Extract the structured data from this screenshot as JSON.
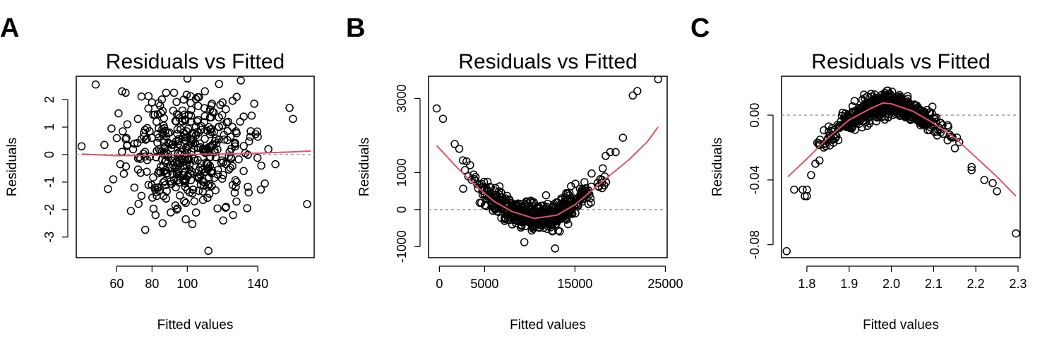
{
  "chart_data": [
    {
      "type": "scatter",
      "panel_label": "A",
      "title": "Residuals vs Fitted",
      "xlabel": "Fitted values",
      "ylabel": "Residuals",
      "xlim": [
        37,
        172
      ],
      "ylim": [
        -3.75,
        2.85
      ],
      "xticks": [
        60,
        80,
        100,
        140
      ],
      "xtick_labels": [
        "60",
        "80",
        "100",
        "140"
      ],
      "yticks": [
        -3,
        -2,
        -1,
        0,
        1,
        2
      ],
      "ytick_labels": [
        "-3",
        "-2",
        "-1",
        "0",
        "1",
        "2"
      ],
      "reference_line_y": 0,
      "smooth": {
        "x": [
          40,
          60,
          80,
          100,
          120,
          140,
          160,
          170
        ],
        "y": [
          0.02,
          -0.04,
          -0.03,
          0.01,
          0.02,
          0.05,
          0.1,
          0.13
        ]
      },
      "points": {
        "x": [
          40,
          48,
          53,
          55,
          57,
          58,
          60,
          61,
          62,
          63,
          63,
          64,
          65,
          66,
          68,
          70,
          72,
          74,
          76,
          78,
          80,
          82,
          84,
          86,
          86,
          88,
          90,
          92,
          94,
          96,
          98,
          100,
          102,
          104,
          106,
          108,
          110,
          112,
          114,
          116,
          118,
          120,
          122,
          124,
          126,
          128,
          130,
          132,
          134,
          136,
          138,
          140,
          142,
          144,
          146,
          150,
          158,
          160,
          168,
          112,
          96,
          70,
          90,
          76,
          84,
          102,
          118,
          128,
          110,
          88
        ],
        "y": [
          0.3,
          2.55,
          0.35,
          -1.25,
          0.95,
          -0.9,
          0.6,
          1.5,
          -0.35,
          2.3,
          0.1,
          -0.7,
          2.25,
          1.1,
          -2.05,
          0.4,
          1.3,
          -1.5,
          0.9,
          -1.1,
          1.9,
          -2.2,
          0.2,
          -2.5,
          0.75,
          2.25,
          -0.5,
          1.6,
          -2.0,
          0.35,
          2.0,
          -0.8,
          1.2,
          -1.7,
          -0.2,
          0.9,
          2.3,
          -3.5,
          1.85,
          -1.3,
          0.55,
          1.9,
          -1.9,
          0.1,
          -2.2,
          2.1,
          1.2,
          -0.6,
          -1.95,
          0.85,
          1.85,
          0.65,
          -0.4,
          -1.05,
          0.2,
          -0.35,
          1.7,
          1.3,
          -1.8,
          -0.5,
          -0.3,
          -1.2,
          0.8,
          0.1,
          -0.6,
          0.4,
          1.0,
          -1.0,
          1.4,
          -1.6
        ]
      },
      "point_cloud": {
        "count": 360,
        "seed": 11,
        "x_range": [
          62,
          146
        ],
        "x_mean": 100,
        "x_sd": 17,
        "y_sd": 0.95
      }
    },
    {
      "type": "scatter",
      "panel_label": "B",
      "title": "Residuals vs Fitted",
      "xlabel": "Fitted values",
      "ylabel": "Residuals",
      "xlim": [
        -1200,
        25200
      ],
      "ylim": [
        -1300,
        3600
      ],
      "xticks": [
        0,
        5000,
        15000,
        25000
      ],
      "xtick_labels": [
        "0",
        "5000",
        "15000",
        "25000"
      ],
      "yticks": [
        -1000,
        0,
        1000,
        3000
      ],
      "ytick_labels": [
        "-1000",
        "0",
        "1000",
        "3000"
      ],
      "reference_line_y": 0,
      "smooth": {
        "x": [
          -300,
          2000,
          4000,
          6000,
          8000,
          10500,
          13000,
          15000,
          17000,
          19000,
          21000,
          23000,
          24200
        ],
        "y": [
          1730,
          1120,
          650,
          230,
          -50,
          -240,
          -150,
          130,
          540,
          950,
          1350,
          1830,
          2230
        ]
      },
      "points": {
        "x": [
          -300,
          400,
          1700,
          2200,
          2600,
          3000,
          3400,
          4000,
          17800,
          18400,
          18900,
          19500,
          20300,
          21400,
          21900,
          24200,
          12800,
          9400,
          16500,
          5000
        ],
        "y": [
          2730,
          2450,
          1770,
          1640,
          1330,
          1300,
          1200,
          880,
          820,
          1450,
          1550,
          1550,
          1940,
          3080,
          3200,
          3520,
          -1050,
          -880,
          150,
          400
        ]
      },
      "point_cloud": {
        "count": 520,
        "seed": 23,
        "x_range": [
          2500,
          18500
        ],
        "x_mean": 10500,
        "x_sd": 3600,
        "y_sd": 170
      }
    },
    {
      "type": "scatter",
      "panel_label": "C",
      "title": "Residuals vs Fitted",
      "xlabel": "Fitted values",
      "ylabel": "Residuals",
      "xlim": [
        1.74,
        2.305
      ],
      "ylim": [
        -0.088,
        0.024
      ],
      "xticks": [
        1.8,
        1.9,
        2.0,
        2.1,
        2.2,
        2.3
      ],
      "xtick_labels": [
        "1.8",
        "1.9",
        "2.0",
        "2.1",
        "2.2",
        "2.3"
      ],
      "yticks": [
        -0.08,
        -0.04,
        0.0
      ],
      "ytick_labels": [
        "-0.08",
        "-0.04",
        "0.00"
      ],
      "reference_line_y": 0,
      "smooth": {
        "x": [
          1.755,
          1.8,
          1.85,
          1.9,
          1.95,
          1.98,
          2.0,
          2.05,
          2.1,
          2.15,
          2.2,
          2.25,
          2.295
        ],
        "y": [
          -0.038,
          -0.027,
          -0.014,
          -0.003,
          0.004,
          0.0075,
          0.007,
          0.0025,
          -0.005,
          -0.014,
          -0.026,
          -0.038,
          -0.05
        ]
      },
      "points": {
        "x": [
          1.752,
          1.77,
          1.79,
          1.795,
          1.8,
          1.8,
          1.81,
          1.82,
          1.83,
          1.84,
          2.19,
          2.19,
          2.22,
          2.24,
          2.25,
          2.295
        ],
        "y": [
          -0.084,
          -0.046,
          -0.046,
          -0.05,
          -0.05,
          -0.046,
          -0.037,
          -0.03,
          -0.028,
          -0.02,
          -0.032,
          -0.034,
          -0.04,
          -0.042,
          -0.047,
          -0.073
        ]
      },
      "point_cloud": {
        "count": 560,
        "seed": 37,
        "x_range": [
          1.82,
          2.19
        ],
        "x_mean": 1.99,
        "x_sd": 0.07,
        "y_sd": 0.0035
      }
    }
  ]
}
